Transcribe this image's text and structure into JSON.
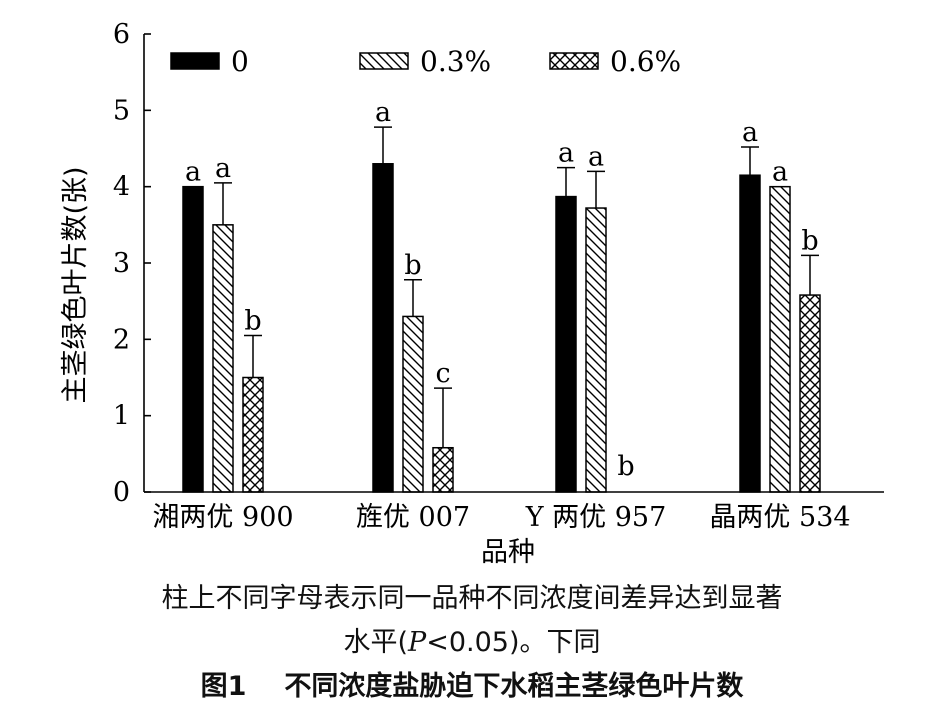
{
  "chart_data": {
    "type": "bar",
    "categories": [
      "湘两优 900",
      "旌优 007",
      "Y 两优 957",
      "晶两优 534"
    ],
    "series": [
      {
        "name": "0",
        "pattern": "solid",
        "values": [
          4.0,
          4.3,
          3.87,
          4.15
        ],
        "errors": [
          0,
          0.48,
          0.38,
          0.37
        ],
        "letters": [
          "a",
          "a",
          "a",
          "a"
        ]
      },
      {
        "name": "0.3%",
        "pattern": "diag",
        "values": [
          3.5,
          2.3,
          3.72,
          4.0
        ],
        "errors": [
          0.55,
          0.48,
          0.48,
          0
        ],
        "letters": [
          "a",
          "b",
          "a",
          "a"
        ]
      },
      {
        "name": "0.6%",
        "pattern": "cross",
        "values": [
          1.5,
          0.58,
          0,
          2.58
        ],
        "errors": [
          0.55,
          0.78,
          0,
          0.52
        ],
        "letters": [
          "b",
          "c",
          "b",
          "b"
        ]
      }
    ],
    "xlabel": "品种",
    "ylabel": "主茎绿色叶片数(张)",
    "ylim": [
      0,
      6
    ],
    "yticks": [
      "0",
      "1",
      "2",
      "3",
      "4",
      "5",
      "6"
    ],
    "legend_position": "top",
    "grid": false
  },
  "notes": {
    "line1": "柱上不同字母表示同一品种不同浓度间差异达到显著",
    "line2_prefix": "水平(",
    "line2_italic": "P",
    "line2_suffix": "<0.05)。下同"
  },
  "caption": {
    "number": "图1",
    "title": "不同浓度盐胁迫下水稻主茎绿色叶片数"
  },
  "colors": {
    "bar": "#000000",
    "background": "#ffffff"
  }
}
